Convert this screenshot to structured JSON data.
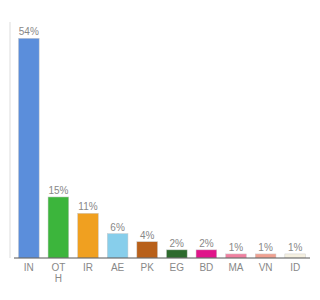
{
  "chart_data": {
    "type": "bar",
    "categories": [
      "IN",
      "OT\nH",
      "IR",
      "AE",
      "PK",
      "EG",
      "BD",
      "MA",
      "VN",
      "ID"
    ],
    "values": [
      54,
      15,
      11,
      6,
      4,
      2,
      2,
      1,
      1,
      1
    ],
    "value_labels": [
      "54%",
      "15%",
      "11%",
      "6%",
      "4%",
      "2%",
      "2%",
      "1%",
      "1%",
      "1%"
    ],
    "data_labels": true,
    "colors": [
      "#5b8edb",
      "#3cb53c",
      "#f0a020",
      "#87ceeb",
      "#b8601a",
      "#2d6a2d",
      "#e0158a",
      "#f080a0",
      "#f0a090",
      "#f5f0e0"
    ],
    "ylim": [
      0,
      58
    ],
    "tick_labels": "x",
    "grid": false
  }
}
